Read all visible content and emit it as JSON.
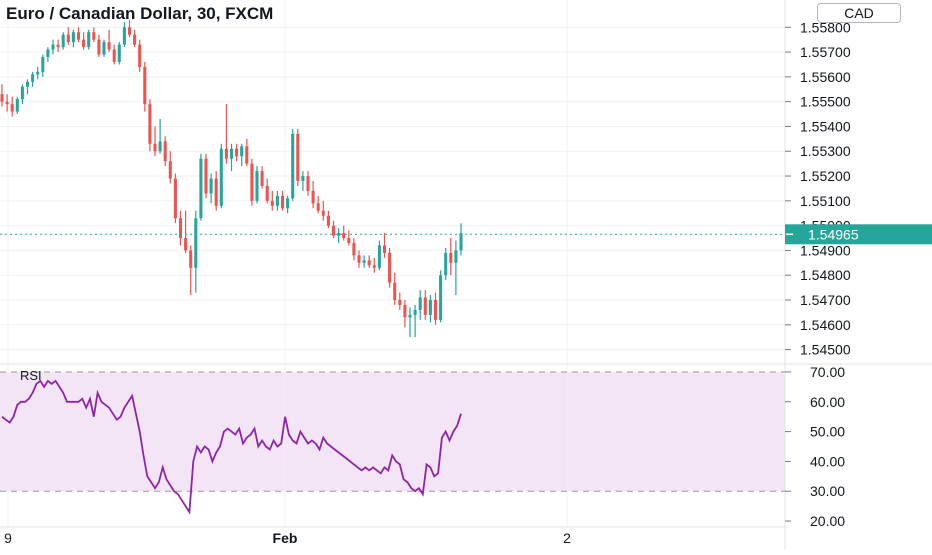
{
  "header": {
    "title": "Euro / Canadian Dollar, 30, FXCM",
    "currency_button": "CAD"
  },
  "rsi_panel": {
    "label": "RSI"
  },
  "colors": {
    "up": "#26a69a",
    "down": "#ef5350",
    "rsi_line": "#8e24aa",
    "rsi_band": "#f3e5f5",
    "grid": "#eef0f3",
    "price_tag": "#26a69a"
  },
  "chart_data": [
    {
      "type": "candlestick",
      "title": "Euro / Canadian Dollar, 30, FXCM",
      "x_ticks": [
        "9",
        "Feb",
        "2"
      ],
      "y_ticks": [
        "1.55800",
        "1.55700",
        "1.55600",
        "1.55500",
        "1.55400",
        "1.55300",
        "1.55200",
        "1.55100",
        "1.55000",
        "1.54900",
        "1.54800",
        "1.54700",
        "1.54600",
        "1.54500"
      ],
      "ylim": [
        1.5445,
        1.5591
      ],
      "last_price": "1.54965",
      "last_price_value": 1.54965,
      "candles": [
        [
          1.5553,
          1.5557,
          1.5548,
          1.555
        ],
        [
          1.555,
          1.5553,
          1.5546,
          1.5549
        ],
        [
          1.5549,
          1.5552,
          1.5544,
          1.5546
        ],
        [
          1.5546,
          1.5552,
          1.5545,
          1.5551
        ],
        [
          1.5551,
          1.5557,
          1.5549,
          1.5556
        ],
        [
          1.5556,
          1.5559,
          1.5553,
          1.5558
        ],
        [
          1.5558,
          1.5562,
          1.5556,
          1.5561
        ],
        [
          1.5561,
          1.5564,
          1.5559,
          1.5562
        ],
        [
          1.5562,
          1.5569,
          1.556,
          1.5568
        ],
        [
          1.5568,
          1.5572,
          1.5566,
          1.5571
        ],
        [
          1.5571,
          1.5575,
          1.5569,
          1.5573
        ],
        [
          1.5573,
          1.5575,
          1.557,
          1.5572
        ],
        [
          1.5572,
          1.5578,
          1.5571,
          1.5577
        ],
        [
          1.5577,
          1.558,
          1.5573,
          1.5574
        ],
        [
          1.5574,
          1.5579,
          1.5572,
          1.5578
        ],
        [
          1.5578,
          1.558,
          1.5574,
          1.5575
        ],
        [
          1.5575,
          1.5578,
          1.5571,
          1.5572
        ],
        [
          1.5572,
          1.5579,
          1.5571,
          1.5578
        ],
        [
          1.5578,
          1.558,
          1.5574,
          1.5575
        ],
        [
          1.5575,
          1.5577,
          1.5568,
          1.5569
        ],
        [
          1.5569,
          1.5575,
          1.5568,
          1.5574
        ],
        [
          1.5574,
          1.5579,
          1.557,
          1.5571
        ],
        [
          1.5571,
          1.5573,
          1.5565,
          1.5566
        ],
        [
          1.5566,
          1.5574,
          1.5565,
          1.5573
        ],
        [
          1.5573,
          1.5582,
          1.5572,
          1.558
        ],
        [
          1.558,
          1.5583,
          1.5576,
          1.5577
        ],
        [
          1.5577,
          1.5579,
          1.5572,
          1.5573
        ],
        [
          1.5573,
          1.5575,
          1.5562,
          1.5564
        ],
        [
          1.5564,
          1.5566,
          1.5546,
          1.5549
        ],
        [
          1.5549,
          1.5551,
          1.553,
          1.5533
        ],
        [
          1.5533,
          1.554,
          1.5528,
          1.553
        ],
        [
          1.553,
          1.5543,
          1.5529,
          1.5534
        ],
        [
          1.5534,
          1.5536,
          1.5524,
          1.5526
        ],
        [
          1.5526,
          1.553,
          1.5517,
          1.5519
        ],
        [
          1.5519,
          1.5521,
          1.5501,
          1.5503
        ],
        [
          1.5503,
          1.5506,
          1.5492,
          1.5495
        ],
        [
          1.5495,
          1.5506,
          1.5489,
          1.549
        ],
        [
          1.549,
          1.5492,
          1.5472,
          1.5483
        ],
        [
          1.5483,
          1.5506,
          1.5473,
          1.5503
        ],
        [
          1.5503,
          1.5529,
          1.5502,
          1.5527
        ],
        [
          1.5527,
          1.5529,
          1.5511,
          1.5513
        ],
        [
          1.5513,
          1.5521,
          1.5509,
          1.5519
        ],
        [
          1.5519,
          1.5522,
          1.5506,
          1.5508
        ],
        [
          1.5508,
          1.5533,
          1.5507,
          1.5531
        ],
        [
          1.5531,
          1.5549,
          1.5525,
          1.5527
        ],
        [
          1.5527,
          1.5533,
          1.5522,
          1.5531
        ],
        [
          1.5531,
          1.5533,
          1.5526,
          1.5528
        ],
        [
          1.5528,
          1.5533,
          1.5524,
          1.5532
        ],
        [
          1.5532,
          1.5535,
          1.5524,
          1.5525
        ],
        [
          1.5525,
          1.5527,
          1.5508,
          1.551
        ],
        [
          1.551,
          1.5524,
          1.5509,
          1.5522
        ],
        [
          1.5522,
          1.5524,
          1.5515,
          1.5516
        ],
        [
          1.5516,
          1.5519,
          1.5509,
          1.551
        ],
        [
          1.551,
          1.5514,
          1.5506,
          1.5508
        ],
        [
          1.5508,
          1.5514,
          1.5506,
          1.5512
        ],
        [
          1.5512,
          1.5514,
          1.5506,
          1.5507
        ],
        [
          1.5507,
          1.5512,
          1.5505,
          1.5511
        ],
        [
          1.5511,
          1.5539,
          1.551,
          1.5537
        ],
        [
          1.5537,
          1.5539,
          1.5516,
          1.5518
        ],
        [
          1.5518,
          1.5522,
          1.5514,
          1.552
        ],
        [
          1.552,
          1.5522,
          1.5512,
          1.5514
        ],
        [
          1.5514,
          1.5518,
          1.5507,
          1.5509
        ],
        [
          1.5509,
          1.5512,
          1.5505,
          1.5506
        ],
        [
          1.5506,
          1.551,
          1.5502,
          1.5504
        ],
        [
          1.5504,
          1.5506,
          1.5499,
          1.55
        ],
        [
          1.55,
          1.5502,
          1.5495,
          1.5496
        ],
        [
          1.5496,
          1.5499,
          1.5493,
          1.5497
        ],
        [
          1.5497,
          1.55,
          1.5494,
          1.5495
        ],
        [
          1.5495,
          1.5498,
          1.5492,
          1.5493
        ],
        [
          1.5493,
          1.5495,
          1.5486,
          1.5488
        ],
        [
          1.5488,
          1.549,
          1.5483,
          1.5485
        ],
        [
          1.5485,
          1.5488,
          1.5483,
          1.5486
        ],
        [
          1.5486,
          1.5488,
          1.5483,
          1.5484
        ],
        [
          1.5484,
          1.5487,
          1.5481,
          1.5483
        ],
        [
          1.5483,
          1.5494,
          1.5482,
          1.5492
        ],
        [
          1.5492,
          1.5497,
          1.5487,
          1.5489
        ],
        [
          1.5489,
          1.5491,
          1.5475,
          1.5477
        ],
        [
          1.5477,
          1.5481,
          1.5468,
          1.547
        ],
        [
          1.547,
          1.5473,
          1.5466,
          1.5468
        ],
        [
          1.5468,
          1.547,
          1.5459,
          1.5463
        ],
        [
          1.5463,
          1.5467,
          1.5455,
          1.5464
        ],
        [
          1.5464,
          1.5468,
          1.5455,
          1.5466
        ],
        [
          1.5466,
          1.5474,
          1.5462,
          1.5471
        ],
        [
          1.5471,
          1.5474,
          1.5462,
          1.5464
        ],
        [
          1.5464,
          1.5472,
          1.5461,
          1.547
        ],
        [
          1.547,
          1.5473,
          1.546,
          1.5462
        ],
        [
          1.5462,
          1.5482,
          1.5461,
          1.548
        ],
        [
          1.548,
          1.5491,
          1.5478,
          1.5489
        ],
        [
          1.5489,
          1.5495,
          1.548,
          1.5485
        ],
        [
          1.5485,
          1.5494,
          1.5472,
          1.549
        ],
        [
          1.549,
          1.5501,
          1.5488,
          1.5497
        ]
      ]
    },
    {
      "type": "line",
      "title": "RSI",
      "y_ticks": [
        "70.00",
        "60.00",
        "50.00",
        "40.00",
        "30.00",
        "20.00"
      ],
      "ylim": [
        18,
        72
      ],
      "band": [
        30,
        70
      ],
      "values": [
        55,
        54,
        53,
        55,
        59,
        60,
        60,
        61,
        63,
        66,
        67,
        65,
        67,
        66,
        67,
        65,
        63,
        60,
        60,
        60,
        60,
        61,
        58,
        61,
        55,
        63,
        60,
        59,
        58,
        56,
        54,
        55,
        58,
        60,
        62,
        56,
        50,
        42,
        35,
        33,
        31,
        33,
        38,
        34,
        32,
        30,
        29,
        27,
        25,
        23,
        40,
        45,
        43,
        45,
        44,
        40,
        43,
        45,
        50,
        51,
        50,
        49,
        51,
        46,
        48,
        49,
        51,
        45,
        47,
        45,
        44,
        47,
        45,
        46,
        55,
        49,
        47,
        46,
        50,
        48,
        46,
        47,
        46,
        44,
        48,
        46,
        45,
        44,
        43,
        42,
        41,
        40,
        39,
        38,
        37,
        38,
        37,
        38,
        37,
        36,
        38,
        37,
        42,
        40,
        39,
        34,
        33,
        31,
        30,
        31,
        29,
        39,
        38,
        35,
        36,
        48,
        50,
        47,
        50,
        52,
        56
      ]
    }
  ]
}
